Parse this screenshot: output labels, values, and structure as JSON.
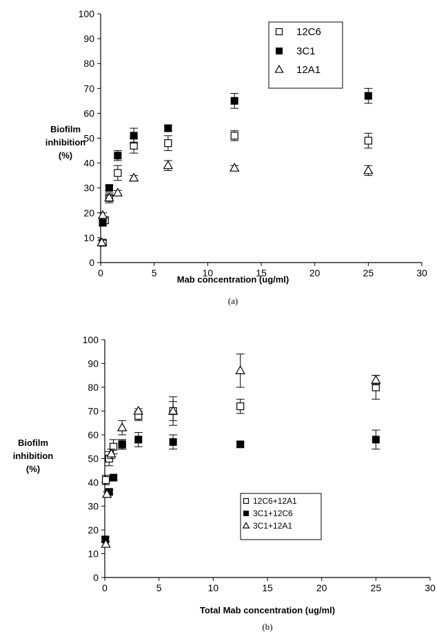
{
  "chart_data": [
    {
      "type": "scatter",
      "panel_label": "(a)",
      "xlabel": "Mab concentration (ug/ml)",
      "ylabel": [
        "Biofilm",
        "inhibition",
        "(%)"
      ],
      "xlim": [
        0,
        30
      ],
      "ylim": [
        0,
        100
      ],
      "xticks": [
        0,
        5,
        10,
        15,
        20,
        25,
        30
      ],
      "yticks": [
        0,
        10,
        20,
        30,
        40,
        50,
        60,
        70,
        80,
        90,
        100
      ],
      "grid": false,
      "legend_position": "top-right",
      "series": [
        {
          "name": "12C6",
          "marker": "open-square",
          "x": [
            0.2,
            0.4,
            0.8,
            1.6,
            3.1,
            6.3,
            12.5,
            25
          ],
          "y": [
            8,
            17,
            26,
            36,
            47,
            48,
            51,
            49
          ],
          "err": [
            1,
            1,
            2,
            3,
            3,
            3,
            2,
            3
          ]
        },
        {
          "name": "3C1",
          "marker": "filled-square",
          "x": [
            0.2,
            0.8,
            1.6,
            3.1,
            6.3,
            12.5,
            25
          ],
          "y": [
            16,
            30,
            43,
            51,
            54,
            65,
            67
          ],
          "err": [
            1,
            1,
            2,
            3,
            1,
            3,
            3
          ]
        },
        {
          "name": "12A1",
          "marker": "open-triangle",
          "x": [
            0.1,
            0.2,
            0.8,
            1.6,
            3.1,
            6.3,
            12.5,
            25
          ],
          "y": [
            8,
            19,
            26,
            28,
            34,
            39,
            38,
            37
          ],
          "err": [
            1,
            1,
            1,
            1,
            1,
            2,
            1,
            2
          ]
        }
      ]
    },
    {
      "type": "scatter",
      "panel_label": "(b)",
      "xlabel": "Total Mab concentration (ug/ml)",
      "ylabel": [
        "Biofilm",
        "inhibition",
        "(%)"
      ],
      "xlim": [
        0,
        30
      ],
      "ylim": [
        0,
        100
      ],
      "xticks": [
        0,
        5,
        10,
        15,
        20,
        25,
        30
      ],
      "yticks": [
        0,
        10,
        20,
        30,
        40,
        50,
        60,
        70,
        80,
        90,
        100
      ],
      "grid": false,
      "legend_position": "bottom-center",
      "series": [
        {
          "name": "12C6+12A1",
          "marker": "open-square",
          "x": [
            0.1,
            0.4,
            0.8,
            1.6,
            3.1,
            6.3,
            12.5,
            25
          ],
          "y": [
            41,
            50,
            55,
            56,
            68,
            70,
            72,
            80
          ],
          "err": [
            2,
            3,
            3,
            2,
            2,
            6,
            3,
            5
          ]
        },
        {
          "name": "3C1+12C6",
          "marker": "filled-square",
          "x": [
            0.05,
            0.4,
            0.8,
            1.6,
            3.1,
            6.3,
            12.5,
            25
          ],
          "y": [
            16,
            36,
            42,
            56,
            58,
            57,
            56,
            58
          ],
          "err": [
            1,
            1,
            1,
            2,
            3,
            3,
            1,
            4
          ]
        },
        {
          "name": "3C1+12A1",
          "marker": "open-triangle",
          "x": [
            0.1,
            0.2,
            0.6,
            1.6,
            3.1,
            6.3,
            12.5,
            25
          ],
          "y": [
            14,
            35,
            52,
            63,
            70,
            70,
            87,
            83
          ],
          "err": [
            1,
            1,
            2,
            3,
            1,
            4,
            7,
            2
          ]
        }
      ]
    }
  ]
}
